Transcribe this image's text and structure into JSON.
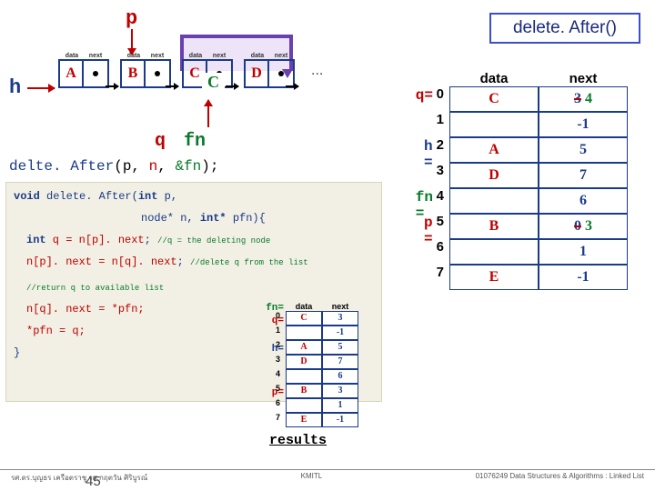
{
  "title": "delete. After()",
  "labels": {
    "p": "p",
    "h": "h",
    "q": "q",
    "fn": "fn",
    "dots": "...",
    "results": "results"
  },
  "nodes": [
    "A",
    "B",
    "C",
    "D"
  ],
  "replace_c": "C",
  "call": {
    "fn": "delte. After",
    "args": "(p, n, &fn);"
  },
  "code": {
    "l1a": "void",
    "l1b": " delete. After(",
    "l1c": "int",
    "l1d": " p,",
    "l2a": "node* n, ",
    "l2b": "int*",
    "l2c": " pfn){",
    "l3a": "int",
    "l3b": " q = n[p]. next",
    "l3c": "; ",
    "l3cmt": "//q = the deleting node",
    "l4a": "n[p]. next = n[q]. next",
    "l4b": "; ",
    "l4cmt": "//delete q from the list",
    "l5cmt": "//return q to available list",
    "l6": "n[q]. next = *pfn;",
    "l7": "*pfn = q;",
    "l8": "}"
  },
  "mini": {
    "side": {
      "fn": "fn=",
      "q": "q=",
      "h": "h=",
      "p": "p="
    },
    "hdr": [
      "",
      "data",
      "next"
    ],
    "rows": [
      {
        "i": "0",
        "d": "C",
        "n": "3"
      },
      {
        "i": "1",
        "d": "",
        "n": "-1"
      },
      {
        "i": "2",
        "d": "A",
        "n": "5"
      },
      {
        "i": "3",
        "d": "D",
        "n": "7"
      },
      {
        "i": "4",
        "d": "",
        "n": "6"
      },
      {
        "i": "5",
        "d": "B",
        "n": "3"
      },
      {
        "i": "6",
        "d": "",
        "n": "1"
      },
      {
        "i": "7",
        "d": "E",
        "n": "-1"
      }
    ]
  },
  "big": {
    "side": {
      "q": "q=",
      "h": "h =",
      "fn": "fn =",
      "p": "p ="
    },
    "hdr": [
      "",
      "data",
      "next"
    ],
    "rows": [
      {
        "i": "0",
        "d": "C",
        "n": "3",
        "nnew": "4"
      },
      {
        "i": "1",
        "d": "",
        "n": "-1"
      },
      {
        "i": "2",
        "d": "A",
        "n": "5"
      },
      {
        "i": "3",
        "d": "D",
        "n": "7"
      },
      {
        "i": "4",
        "d": "",
        "n": "6"
      },
      {
        "i": "5",
        "d": "B",
        "n": "0",
        "nnew": "3"
      },
      {
        "i": "6",
        "d": "",
        "n": "1"
      },
      {
        "i": "7",
        "d": "E",
        "n": "-1"
      }
    ]
  },
  "footer": {
    "left": "รศ.ดร.บุญธร    เครือตราชู    รศ.กฤตวัน   ศิริบูรณ์",
    "mid": "KMITL",
    "right": "01076249 Data Structures & Algorithms : Linked List",
    "page": "45"
  }
}
